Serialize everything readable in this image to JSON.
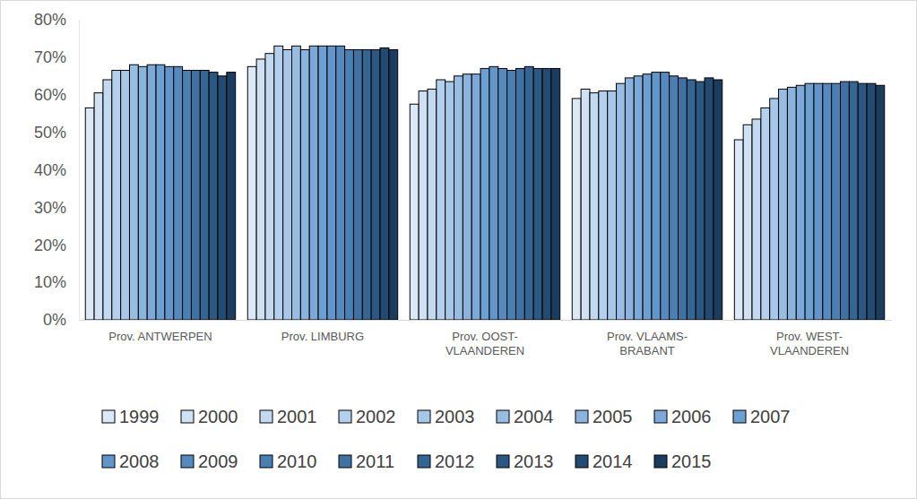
{
  "chart_data": {
    "type": "bar",
    "categories": [
      "Prov. ANTWERPEN",
      "Prov. LIMBURG",
      "Prov. OOST-VLAANDEREN",
      "Prov. VLAAMS-BRABANT",
      "Prov. WEST-VLAANDEREN"
    ],
    "series": [
      {
        "name": "1999",
        "color": "#dbe8f5",
        "values": [
          56.5,
          67.5,
          57.5,
          59,
          48
        ]
      },
      {
        "name": "2000",
        "color": "#cfe1f3",
        "values": [
          60.5,
          69.5,
          61,
          61.5,
          52
        ]
      },
      {
        "name": "2001",
        "color": "#c2d9f0",
        "values": [
          64,
          71,
          61.5,
          60.5,
          53.5
        ]
      },
      {
        "name": "2002",
        "color": "#b4d0ec",
        "values": [
          66.5,
          73,
          64,
          61,
          56.5
        ]
      },
      {
        "name": "2003",
        "color": "#a6c7e8",
        "values": [
          66.5,
          72,
          63.5,
          61,
          59
        ]
      },
      {
        "name": "2004",
        "color": "#98bde3",
        "values": [
          68,
          73,
          65,
          63,
          61.5
        ]
      },
      {
        "name": "2005",
        "color": "#8ab3de",
        "values": [
          67.5,
          72,
          65.5,
          64.5,
          62
        ]
      },
      {
        "name": "2006",
        "color": "#7ca9d8",
        "values": [
          68,
          73,
          65.5,
          65,
          62.5
        ]
      },
      {
        "name": "2007",
        "color": "#6e9fd2",
        "values": [
          68,
          73,
          67,
          65.5,
          63
        ]
      },
      {
        "name": "2008",
        "color": "#6295c9",
        "values": [
          67.5,
          73,
          67.5,
          66,
          63
        ]
      },
      {
        "name": "2009",
        "color": "#568abe",
        "values": [
          67.5,
          73,
          67,
          66,
          63
        ]
      },
      {
        "name": "2010",
        "color": "#4a7fb2",
        "values": [
          66.5,
          72,
          66.5,
          65,
          63
        ]
      },
      {
        "name": "2011",
        "color": "#3f72a3",
        "values": [
          66.5,
          72,
          67,
          64.5,
          63.5
        ]
      },
      {
        "name": "2012",
        "color": "#356593",
        "values": [
          66.5,
          72,
          67.5,
          64,
          63.5
        ]
      },
      {
        "name": "2013",
        "color": "#2c5782",
        "values": [
          66,
          72,
          67,
          63.5,
          63
        ]
      },
      {
        "name": "2014",
        "color": "#234a70",
        "values": [
          65,
          72.5,
          67,
          64.5,
          63
        ]
      },
      {
        "name": "2015",
        "color": "#1b3c5e",
        "values": [
          66,
          72,
          67,
          64,
          62.5
        ]
      }
    ],
    "ylim": [
      0,
      80
    ],
    "yticks": [
      {
        "value": 0,
        "label": "0%"
      },
      {
        "value": 10,
        "label": "10%"
      },
      {
        "value": 20,
        "label": "20%"
      },
      {
        "value": 30,
        "label": "30%"
      },
      {
        "value": 40,
        "label": "40%"
      },
      {
        "value": 50,
        "label": "50%"
      },
      {
        "value": 60,
        "label": "60%"
      },
      {
        "value": 70,
        "label": "70%"
      },
      {
        "value": 80,
        "label": "80%"
      }
    ],
    "grid": false,
    "legend": "bottom"
  }
}
